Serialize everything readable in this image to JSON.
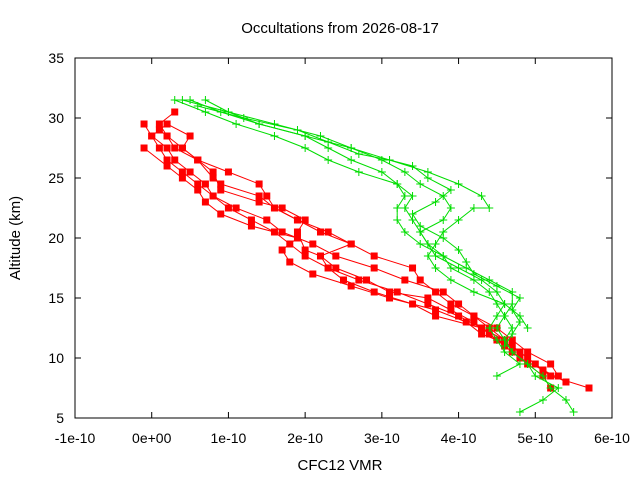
{
  "chart_data": {
    "type": "scatter",
    "title": "Occultations from 2026-08-17",
    "xlabel": "CFC12 VMR",
    "ylabel": "Altitude (km)",
    "xlim": [
      -1e-10,
      6e-10
    ],
    "ylim": [
      5,
      35
    ],
    "x_ticks": [
      -1e-10,
      0,
      1e-10,
      2e-10,
      3e-10,
      4e-10,
      5e-10,
      6e-10
    ],
    "x_tick_labels": [
      "-1e-10",
      "0e+00",
      "1e-10",
      "2e-10",
      "3e-10",
      "4e-10",
      "5e-10",
      "6e-10"
    ],
    "y_ticks": [
      5,
      10,
      15,
      20,
      25,
      30,
      35
    ],
    "y_tick_labels": [
      "5",
      "10",
      "15",
      "20",
      "25",
      "30",
      "35"
    ],
    "grid": false,
    "legend": "none",
    "series": [
      {
        "color": "#ff0000",
        "marker": "square",
        "points": [
          [
            5.7e-10,
            7.5
          ],
          [
            5.2e-10,
            8.5
          ],
          [
            5e-10,
            9.5
          ],
          [
            4.8e-10,
            10.5
          ],
          [
            4.5e-10,
            11.5
          ],
          [
            4.3e-10,
            12.5
          ],
          [
            4e-10,
            13.5
          ],
          [
            3.6e-10,
            14.5
          ],
          [
            3.2e-10,
            15.5
          ],
          [
            2.7e-10,
            16.5
          ],
          [
            2.3e-10,
            17.5
          ],
          [
            2e-10,
            18.5
          ],
          [
            1.8e-10,
            19.5
          ],
          [
            1.6e-10,
            20.5
          ],
          [
            1.3e-10,
            21.5
          ],
          [
            1e-10,
            22.5
          ],
          [
            8e-11,
            23.5
          ],
          [
            6e-11,
            24.5
          ],
          [
            4e-11,
            25.5
          ],
          [
            2e-11,
            26.5
          ],
          [
            1e-11,
            27.5
          ],
          [
            0.0,
            28.5
          ],
          [
            -1e-11,
            29.5
          ]
        ]
      },
      {
        "color": "#ff0000",
        "marker": "square",
        "points": [
          [
            5.2e-10,
            7.5
          ],
          [
            5.1e-10,
            8.5
          ],
          [
            4.9e-10,
            9.5
          ],
          [
            4.7e-10,
            10.5
          ],
          [
            4.6e-10,
            11.5
          ],
          [
            4.4e-10,
            12.5
          ],
          [
            4.2e-10,
            13.5
          ],
          [
            3.9e-10,
            14.5
          ],
          [
            3.7e-10,
            15.5
          ],
          [
            3.5e-10,
            16.5
          ],
          [
            3.4e-10,
            17.5
          ],
          [
            2.9e-10,
            18.5
          ],
          [
            2.6e-10,
            19.5
          ],
          [
            2.2e-10,
            20.5
          ],
          [
            1.9e-10,
            21.5
          ],
          [
            1.6e-10,
            22.5
          ],
          [
            1.5e-10,
            23.5
          ],
          [
            1.4e-10,
            24.5
          ],
          [
            1e-10,
            25.5
          ],
          [
            6e-11,
            26.5
          ],
          [
            3e-11,
            27.5
          ],
          [
            2e-11,
            28.5
          ],
          [
            1e-11,
            29.5
          ],
          [
            3e-11,
            30.5
          ]
        ]
      },
      {
        "color": "#ff0000",
        "marker": "square",
        "points": [
          [
            5.3e-10,
            8.5
          ],
          [
            5.2e-10,
            9.5
          ],
          [
            4.9e-10,
            10.5
          ],
          [
            4.7e-10,
            11.5
          ],
          [
            4.5e-10,
            12.5
          ],
          [
            4.2e-10,
            13.5
          ],
          [
            4e-10,
            14.5
          ],
          [
            3.8e-10,
            15.5
          ],
          [
            3.3e-10,
            16.5
          ],
          [
            2.9e-10,
            17.5
          ],
          [
            2.4e-10,
            18.5
          ],
          [
            2.1e-10,
            19.5
          ],
          [
            1.7e-10,
            20.5
          ],
          [
            1.5e-10,
            21.5
          ],
          [
            1.1e-10,
            22.5
          ],
          [
            8e-11,
            23.5
          ],
          [
            7e-11,
            24.5
          ],
          [
            5e-11,
            25.5
          ],
          [
            3e-11,
            26.5
          ],
          [
            2e-11,
            27.5
          ],
          [
            0.0,
            28.5
          ],
          [
            2e-11,
            29.5
          ]
        ]
      },
      {
        "color": "#ff0000",
        "marker": "square",
        "points": [
          [
            5.1e-10,
            9.0
          ],
          [
            4.9e-10,
            10.0
          ],
          [
            4.7e-10,
            11.0
          ],
          [
            4.3e-10,
            12.0
          ],
          [
            4.1e-10,
            13.0
          ],
          [
            3.7e-10,
            14.0
          ],
          [
            3.1e-10,
            15.0
          ],
          [
            2.6e-10,
            16.0
          ],
          [
            2.1e-10,
            17.0
          ],
          [
            1.8e-10,
            18.0
          ],
          [
            1.7e-10,
            19.0
          ],
          [
            1.9e-10,
            20.0
          ],
          [
            1.3e-10,
            21.0
          ],
          [
            9e-11,
            22.0
          ],
          [
            7e-11,
            23.0
          ],
          [
            6e-11,
            24.0
          ],
          [
            4e-11,
            25.0
          ],
          [
            2e-11,
            26.0
          ],
          [
            -1e-11,
            27.5
          ]
        ]
      },
      {
        "color": "#ff0000",
        "marker": "square",
        "points": [
          [
            5.4e-10,
            8.0
          ],
          [
            5.1e-10,
            9.0
          ],
          [
            4.8e-10,
            10.0
          ],
          [
            4.6e-10,
            11.0
          ],
          [
            4.4e-10,
            12.0
          ],
          [
            4.2e-10,
            13.0
          ],
          [
            3.9e-10,
            14.0
          ],
          [
            3.6e-10,
            15.0
          ],
          [
            3.1e-10,
            15.5
          ],
          [
            2.8e-10,
            16.5
          ],
          [
            2.4e-10,
            17.5
          ],
          [
            2.2e-10,
            18.5
          ],
          [
            2e-10,
            19.0
          ],
          [
            1.9e-10,
            20.5
          ],
          [
            2e-10,
            21.5
          ],
          [
            1.7e-10,
            22.5
          ],
          [
            1.4e-10,
            23.0
          ],
          [
            9e-11,
            24.0
          ],
          [
            8e-11,
            25.5
          ],
          [
            6e-11,
            26.5
          ],
          [
            4e-11,
            27.5
          ],
          [
            2e-11,
            28.5
          ],
          [
            1e-11,
            29.0
          ]
        ]
      },
      {
        "color": "#ff0000",
        "marker": "square",
        "points": [
          [
            4.6e-10,
            11.5
          ],
          [
            4.3e-10,
            12.5
          ],
          [
            3.7e-10,
            13.5
          ],
          [
            3.4e-10,
            14.5
          ],
          [
            2.9e-10,
            15.5
          ],
          [
            2.5e-10,
            16.5
          ],
          [
            2.3e-10,
            17.5
          ],
          [
            2.2e-10,
            18.5
          ],
          [
            2.6e-10,
            19.5
          ],
          [
            2.3e-10,
            20.5
          ],
          [
            1.9e-10,
            21.5
          ],
          [
            1.6e-10,
            22.5
          ],
          [
            1.4e-10,
            23.5
          ],
          [
            9e-11,
            24.5
          ],
          [
            8e-11,
            25.0
          ],
          [
            6e-11,
            26.5
          ],
          [
            4e-11,
            27.5
          ],
          [
            5e-11,
            28.5
          ],
          [
            2e-11,
            29.5
          ]
        ]
      },
      {
        "color": "#00dd00",
        "marker": "plus",
        "points": [
          [
            4.8e-10,
            5.5
          ],
          [
            5.1e-10,
            6.5
          ],
          [
            5.3e-10,
            7.5
          ],
          [
            5e-10,
            8.5
          ],
          [
            4.9e-10,
            9.5
          ],
          [
            4.7e-10,
            10.5
          ],
          [
            4.6e-10,
            11.5
          ],
          [
            4.7e-10,
            12.5
          ],
          [
            4.6e-10,
            13.5
          ],
          [
            4.7e-10,
            14.5
          ],
          [
            4.7e-10,
            15.5
          ],
          [
            4.4e-10,
            16.5
          ],
          [
            4.1e-10,
            17.5
          ],
          [
            3.8e-10,
            18.5
          ],
          [
            3.5e-10,
            19.5
          ],
          [
            3.3e-10,
            20.5
          ],
          [
            3.2e-10,
            21.5
          ],
          [
            3.2e-10,
            22.5
          ],
          [
            3.3e-10,
            23.5
          ],
          [
            3.2e-10,
            24.5
          ],
          [
            3e-10,
            25.5
          ],
          [
            2.6e-10,
            26.5
          ],
          [
            2.3e-10,
            27.5
          ],
          [
            2e-10,
            28.5
          ],
          [
            1.4e-10,
            29.5
          ],
          [
            9e-11,
            30.5
          ],
          [
            5e-11,
            31.5
          ]
        ]
      },
      {
        "color": "#00dd00",
        "marker": "plus",
        "points": [
          [
            5.5e-10,
            5.5
          ],
          [
            5.4e-10,
            6.5
          ],
          [
            5.2e-10,
            7.5
          ],
          [
            5.1e-10,
            8.5
          ],
          [
            4.9e-10,
            9.5
          ],
          [
            4.7e-10,
            10.5
          ],
          [
            4.6e-10,
            11.5
          ],
          [
            4.5e-10,
            12.5
          ],
          [
            4.6e-10,
            13.5
          ],
          [
            4.5e-10,
            14.5
          ],
          [
            4.4e-10,
            15.5
          ],
          [
            4.2e-10,
            16.5
          ],
          [
            3.9e-10,
            17.5
          ],
          [
            3.8e-10,
            18.5
          ],
          [
            3.6e-10,
            19.5
          ],
          [
            3.5e-10,
            20.5
          ],
          [
            3.4e-10,
            21.5
          ],
          [
            3.3e-10,
            22.5
          ],
          [
            3.4e-10,
            23.5
          ],
          [
            3.2e-10,
            24.5
          ],
          [
            2.7e-10,
            25.5
          ],
          [
            2.3e-10,
            26.5
          ],
          [
            2e-10,
            27.5
          ],
          [
            1.6e-10,
            28.5
          ],
          [
            1.1e-10,
            29.5
          ],
          [
            7e-11,
            30.5
          ],
          [
            3e-11,
            31.5
          ]
        ]
      },
      {
        "color": "#00dd00",
        "marker": "plus",
        "points": [
          [
            4.5e-10,
            8.5
          ],
          [
            4.8e-10,
            9.5
          ],
          [
            4.6e-10,
            10.5
          ],
          [
            4.5e-10,
            11.5
          ],
          [
            4.4e-10,
            12.5
          ],
          [
            4.5e-10,
            13.5
          ],
          [
            4.6e-10,
            14.5
          ],
          [
            4.5e-10,
            15.5
          ],
          [
            4.3e-10,
            16.5
          ],
          [
            4e-10,
            17.5
          ],
          [
            3.7e-10,
            18.5
          ],
          [
            3.6e-10,
            19.5
          ],
          [
            3.5e-10,
            20.5
          ],
          [
            3.8e-10,
            21.5
          ],
          [
            3.9e-10,
            22.5
          ],
          [
            3.8e-10,
            23.5
          ],
          [
            3.5e-10,
            24.5
          ],
          [
            3.3e-10,
            25.5
          ],
          [
            3e-10,
            26.5
          ],
          [
            2.6e-10,
            27.5
          ],
          [
            2.2e-10,
            28.5
          ],
          [
            1.6e-10,
            29.5
          ],
          [
            1e-10,
            30.5
          ],
          [
            7e-11,
            31.5
          ]
        ]
      },
      {
        "color": "#00dd00",
        "marker": "plus",
        "points": [
          [
            4.6e-10,
            11.0
          ],
          [
            4.7e-10,
            12.0
          ],
          [
            4.8e-10,
            13.0
          ],
          [
            4.7e-10,
            14.0
          ],
          [
            4.8e-10,
            15.0
          ],
          [
            4.5e-10,
            16.0
          ],
          [
            4.2e-10,
            17.0
          ],
          [
            4.1e-10,
            18.0
          ],
          [
            4e-10,
            19.0
          ],
          [
            3.8e-10,
            20.0
          ],
          [
            3.5e-10,
            21.0
          ],
          [
            3.4e-10,
            22.0
          ],
          [
            3.7e-10,
            23.0
          ],
          [
            3.9e-10,
            24.0
          ],
          [
            3.6e-10,
            25.0
          ],
          [
            3.4e-10,
            26.0
          ],
          [
            3.1e-10,
            26.5
          ],
          [
            2.7e-10,
            27.0
          ],
          [
            2.3e-10,
            28.0
          ],
          [
            1.9e-10,
            29.0
          ],
          [
            1.2e-10,
            30.0
          ],
          [
            6e-11,
            31.0
          ]
        ]
      },
      {
        "color": "#00dd00",
        "marker": "plus",
        "points": [
          [
            4.9e-10,
            12.5
          ],
          [
            4.8e-10,
            13.5
          ],
          [
            4.6e-10,
            14.5
          ],
          [
            4.2e-10,
            15.5
          ],
          [
            3.9e-10,
            16.5
          ],
          [
            3.7e-10,
            17.5
          ],
          [
            3.6e-10,
            18.5
          ],
          [
            3.7e-10,
            19.5
          ],
          [
            3.8e-10,
            20.5
          ],
          [
            4e-10,
            21.5
          ],
          [
            4.2e-10,
            22.5
          ],
          [
            4.4e-10,
            22.5
          ],
          [
            4.3e-10,
            23.5
          ],
          [
            4e-10,
            24.5
          ],
          [
            3.6e-10,
            25.5
          ],
          [
            3.1e-10,
            26.5
          ],
          [
            2.6e-10,
            27.5
          ],
          [
            2e-10,
            28.5
          ],
          [
            1.4e-10,
            29.5
          ],
          [
            1e-10,
            30.5
          ],
          [
            4e-11,
            31.5
          ]
        ]
      }
    ]
  }
}
